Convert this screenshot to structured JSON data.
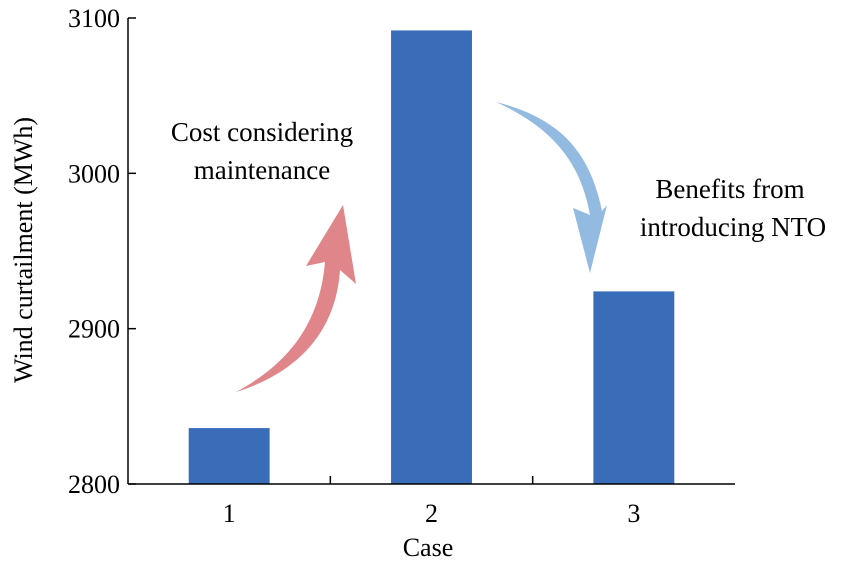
{
  "chart_data": {
    "type": "bar",
    "categories": [
      "1",
      "2",
      "3"
    ],
    "values": [
      2836,
      3092,
      2924
    ],
    "xlabel": "Case",
    "ylabel": "Wind curtailment (MWh)",
    "ylim": [
      2800,
      3100
    ],
    "yticks": [
      2800,
      2900,
      3000,
      3100
    ],
    "grid": false,
    "bar_color": "#3A6DB8",
    "annotations": [
      {
        "lines": [
          "Cost considering",
          "maintenance"
        ],
        "arrow_color": "#E0858A",
        "arrow_direction": "up"
      },
      {
        "lines": [
          "Benefits from",
          "introducing NTO"
        ],
        "arrow_color": "#93BAE0",
        "arrow_direction": "down"
      }
    ]
  }
}
